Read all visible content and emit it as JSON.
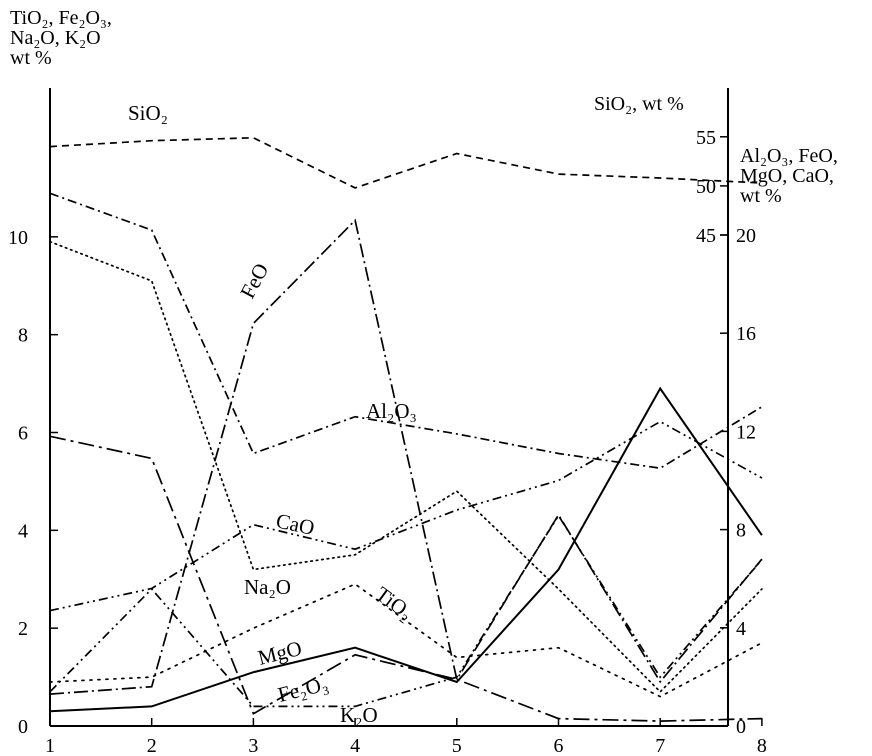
{
  "chart_data": {
    "type": "line",
    "x": [
      1,
      2,
      3,
      4,
      5,
      6,
      7,
      8
    ],
    "left_axis": {
      "label_lines": [
        "TiO₂, Fe₂O₃,",
        "Na₂O, K₂O",
        "wt %"
      ],
      "ylim": [
        0,
        12
      ],
      "ticks": [
        0,
        2,
        4,
        6,
        8,
        10
      ]
    },
    "right_axis_sio2": {
      "label": "SiO₂, wt %",
      "ylim": [
        40,
        60
      ],
      "ticks": [
        45,
        50,
        55
      ]
    },
    "right_axis_major": {
      "label_lines": [
        "Al₂O₃, FeO,",
        "MgO, CaO,",
        "wt %"
      ],
      "ylim": [
        0,
        20
      ],
      "ticks": [
        0,
        4,
        8,
        12,
        16,
        20
      ]
    },
    "series": [
      {
        "name": "SiO₂",
        "axis": "sio2",
        "style": "dash",
        "values": [
          54,
          54.6,
          54.9,
          49.8,
          53.3,
          51.2,
          50.8,
          50.3
        ]
      },
      {
        "name": "FeO",
        "axis": "major",
        "style": "dashdotlong",
        "values": [
          1.3,
          1.6,
          16.4,
          20.6,
          1.9,
          8.6,
          1.8,
          6.8
        ]
      },
      {
        "name": "Al₂O₃",
        "axis": "major",
        "style": "dashdot",
        "values": [
          21.7,
          20.2,
          11.1,
          12.6,
          11.9,
          11.1,
          10.5,
          13
        ]
      },
      {
        "name": "CaO",
        "axis": "major",
        "style": "dashdotdot",
        "values": [
          4.7,
          5.6,
          8.2,
          7.2,
          8.8,
          10,
          12.4,
          10.1
        ]
      },
      {
        "name": "MgO",
        "axis": "major",
        "style": "longdashdot",
        "values": [
          11.8,
          10.9,
          0.5,
          2.9,
          1.9,
          0.3,
          0.2,
          0.3
        ]
      },
      {
        "name": "Na₂O",
        "axis": "left",
        "style": "dot",
        "values": [
          9.9,
          9.1,
          3.2,
          3.5,
          4.8,
          2.8,
          0.7,
          2.8
        ]
      },
      {
        "name": "TiO₂",
        "axis": "left",
        "style": "densedot",
        "values": [
          0.9,
          1.0,
          2.0,
          2.9,
          1.4,
          1.6,
          0.6,
          1.7
        ]
      },
      {
        "name": "Fe₂O₃",
        "axis": "left",
        "style": "dashdotdot",
        "values": [
          0.7,
          2.8,
          0.4,
          0.4,
          1.0,
          4.3,
          1.0,
          3.4
        ]
      },
      {
        "name": "K₂O",
        "axis": "left",
        "style": "solid",
        "values": [
          0.3,
          0.4,
          1.1,
          1.6,
          0.9,
          3.2,
          6.9,
          3.9
        ]
      }
    ],
    "grid": false
  }
}
